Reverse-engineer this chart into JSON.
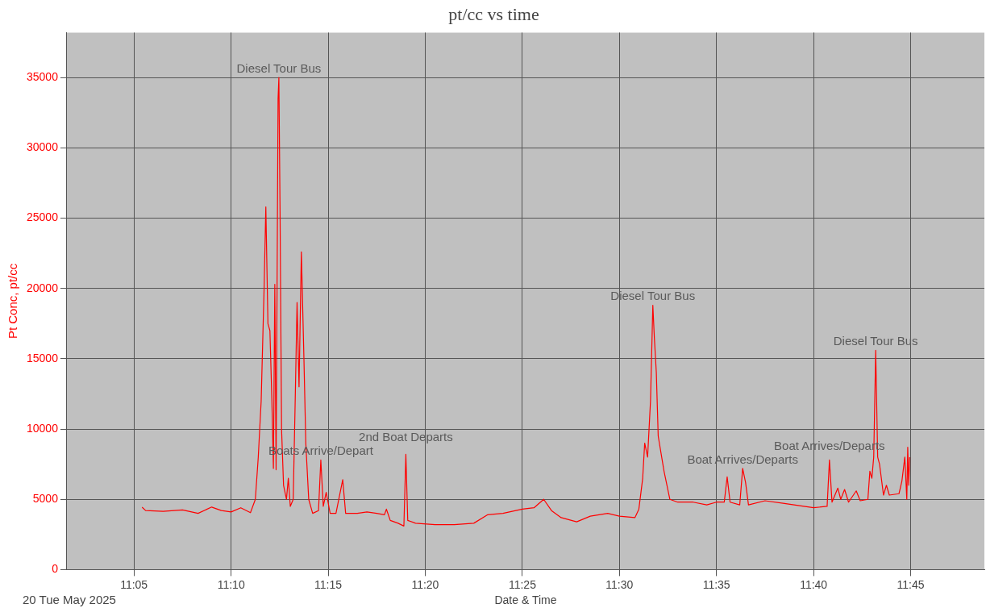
{
  "chart_data": {
    "type": "line",
    "title": "pt/cc vs time",
    "xlabel": "Date & Time",
    "ylabel": "Pt Conc, pt/cc",
    "xlim": [
      11.0257,
      11.8133
    ],
    "xticks": [
      {
        "value": 11.0833,
        "label": "11:05"
      },
      {
        "value": 11.1667,
        "label": "11:10"
      },
      {
        "value": 11.25,
        "label": "11:15"
      },
      {
        "value": 11.3333,
        "label": "11:20"
      },
      {
        "value": 11.4167,
        "label": "11:25"
      },
      {
        "value": 11.5,
        "label": "11:30"
      },
      {
        "value": 11.5833,
        "label": "11:35"
      },
      {
        "value": 11.6667,
        "label": "11:40"
      },
      {
        "value": 11.75,
        "label": "11:45"
      }
    ],
    "ylim": [
      0,
      38200
    ],
    "yticks": [
      0,
      5000,
      10000,
      15000,
      20000,
      25000,
      30000,
      35000
    ],
    "grid": true,
    "legend": false,
    "marker": "none",
    "line_style": "solid",
    "series": [
      {
        "color": "#ff0000",
        "x": [
          11.0903,
          11.0933,
          11.1083,
          11.125,
          11.1383,
          11.15,
          11.1583,
          11.1667,
          11.175,
          11.1833,
          11.1875,
          11.19,
          11.1925,
          11.195,
          11.1965,
          11.1983,
          11.2,
          11.2017,
          11.203,
          11.2042,
          11.2053,
          11.207,
          11.2077,
          11.2087,
          11.21,
          11.2117,
          11.2142,
          11.2158,
          11.2175,
          11.22,
          11.2217,
          11.2233,
          11.225,
          11.227,
          11.2292,
          11.2308,
          11.2333,
          11.2367,
          11.2417,
          11.2437,
          11.2458,
          11.2483,
          11.2517,
          11.2567,
          11.2625,
          11.265,
          11.275,
          11.2833,
          11.2917,
          11.2983,
          11.3,
          11.3033,
          11.31,
          11.315,
          11.3167,
          11.3183,
          11.325,
          11.3417,
          11.3583,
          11.375,
          11.3867,
          11.4,
          11.4167,
          11.4267,
          11.435,
          11.4417,
          11.45,
          11.4633,
          11.475,
          11.49,
          11.5,
          11.5133,
          11.5167,
          11.52,
          11.5217,
          11.5242,
          11.5267,
          11.5287,
          11.53,
          11.5317,
          11.5333,
          11.5383,
          11.5433,
          11.55,
          11.5633,
          11.575,
          11.5833,
          11.59,
          11.5925,
          11.595,
          11.6033,
          11.6058,
          11.6083,
          11.6108,
          11.625,
          11.6417,
          11.6583,
          11.6667,
          11.6783,
          11.6803,
          11.6825,
          11.6875,
          11.69,
          11.6933,
          11.6967,
          11.7033,
          11.7067,
          11.7133,
          11.715,
          11.7167,
          11.7183,
          11.72,
          11.7217,
          11.7233,
          11.7267,
          11.7292,
          11.7317,
          11.74,
          11.7425,
          11.745,
          11.7467,
          11.7475,
          11.7483,
          11.7492
        ],
        "values": [
          4440,
          4200,
          4150,
          4250,
          4000,
          4450,
          4200,
          4100,
          4400,
          4050,
          5000,
          8000,
          12000,
          20000,
          25800,
          17500,
          17000,
          12000,
          7200,
          20300,
          7100,
          33500,
          35000,
          25500,
          10000,
          6000,
          5000,
          6500,
          4500,
          5000,
          12000,
          19000,
          13000,
          22600,
          15000,
          9000,
          5000,
          4000,
          4200,
          7800,
          4500,
          5500,
          4000,
          4000,
          6400,
          4000,
          4000,
          4100,
          4000,
          3900,
          4300,
          3500,
          3300,
          3100,
          8200,
          3500,
          3300,
          3200,
          3200,
          3300,
          3900,
          4000,
          4300,
          4400,
          5000,
          4200,
          3700,
          3400,
          3800,
          4000,
          3800,
          3700,
          4300,
          6500,
          9000,
          8000,
          12000,
          18800,
          16500,
          14000,
          9500,
          7000,
          5000,
          4800,
          4800,
          4600,
          4800,
          4800,
          6600,
          4800,
          4600,
          7200,
          6200,
          4600,
          4900,
          4700,
          4500,
          4400,
          4500,
          7800,
          4800,
          5800,
          5000,
          5700,
          4800,
          5600,
          4900,
          5000,
          7000,
          6500,
          8000,
          15600,
          8000,
          7500,
          5300,
          6000,
          5300,
          5400,
          6300,
          8000,
          5000,
          8700,
          6000,
          8000
        ]
      }
    ],
    "annotations": [
      {
        "text": "Diesel Tour Bus",
        "x": 11.2077,
        "y": 35000
      },
      {
        "text": "Diesel Tour Bus",
        "x": 11.5287,
        "y": 18800
      },
      {
        "text": "Diesel Tour Bus",
        "x": 11.72,
        "y": 15600
      },
      {
        "text": "Boats Arrive/Depart",
        "x": 11.2437,
        "y": 7800
      },
      {
        "text": "2nd Boat Departs",
        "x": 11.3167,
        "y": 8200
      },
      {
        "text": "Boat Arrives/Departs",
        "x": 11.6058,
        "y": 7200
      },
      {
        "text": "Boat Arrives/Departs",
        "x": 11.6803,
        "y": 7800
      },
      "20 Tue May 2025"
    ]
  }
}
